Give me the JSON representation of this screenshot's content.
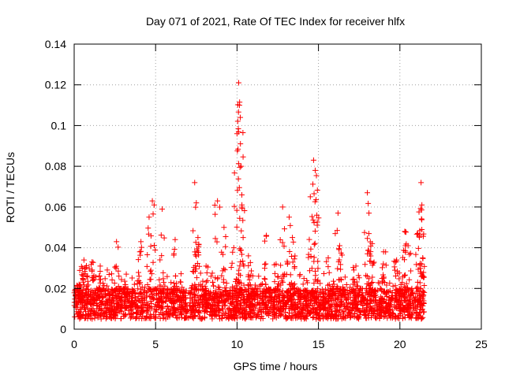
{
  "chart_data": {
    "type": "scatter",
    "title": "Day 071 of 2021, Rate Of TEC Index for receiver hlfx",
    "xlabel": "GPS time / hours",
    "ylabel": "ROTI / TECUs",
    "xlim": [
      0,
      25
    ],
    "ylim": [
      0,
      0.14
    ],
    "x_ticks": [
      0,
      5,
      10,
      15,
      20,
      25
    ],
    "x_tick_labels": [
      "0",
      "5",
      "10",
      "15",
      "20",
      "25"
    ],
    "y_ticks": [
      0,
      0.02,
      0.04,
      0.06,
      0.08,
      0.1,
      0.12,
      0.14
    ],
    "y_tick_labels": [
      "0",
      "0.02",
      "0.04",
      "0.06",
      "0.08",
      "0.1",
      "0.12",
      "0.14"
    ],
    "grid": true,
    "marker": "+",
    "color": "#ff0000",
    "data_range_hours": [
      0,
      21.5
    ],
    "baseline_band": [
      0.005,
      0.02
    ],
    "spikes": [
      {
        "x": 0.3,
        "y": 0.022
      },
      {
        "x": 0.5,
        "y": 0.03
      },
      {
        "x": 0.6,
        "y": 0.034
      },
      {
        "x": 1.1,
        "y": 0.033
      },
      {
        "x": 1.6,
        "y": 0.031
      },
      {
        "x": 2.6,
        "y": 0.043
      },
      {
        "x": 3.2,
        "y": 0.027
      },
      {
        "x": 4.1,
        "y": 0.043
      },
      {
        "x": 4.6,
        "y": 0.055
      },
      {
        "x": 4.8,
        "y": 0.063
      },
      {
        "x": 5.4,
        "y": 0.059
      },
      {
        "x": 6.2,
        "y": 0.044
      },
      {
        "x": 7.4,
        "y": 0.072
      },
      {
        "x": 7.5,
        "y": 0.062
      },
      {
        "x": 7.6,
        "y": 0.045
      },
      {
        "x": 8.1,
        "y": 0.031
      },
      {
        "x": 8.8,
        "y": 0.063
      },
      {
        "x": 9.2,
        "y": 0.05
      },
      {
        "x": 9.8,
        "y": 0.04
      },
      {
        "x": 10.0,
        "y": 0.096
      },
      {
        "x": 10.1,
        "y": 0.121
      },
      {
        "x": 10.15,
        "y": 0.11
      },
      {
        "x": 10.2,
        "y": 0.104
      },
      {
        "x": 10.25,
        "y": 0.08
      },
      {
        "x": 10.3,
        "y": 0.061
      },
      {
        "x": 10.7,
        "y": 0.036
      },
      {
        "x": 11.8,
        "y": 0.046
      },
      {
        "x": 12.4,
        "y": 0.032
      },
      {
        "x": 12.8,
        "y": 0.06
      },
      {
        "x": 13.2,
        "y": 0.055
      },
      {
        "x": 13.4,
        "y": 0.045
      },
      {
        "x": 14.5,
        "y": 0.065
      },
      {
        "x": 14.7,
        "y": 0.083
      },
      {
        "x": 14.8,
        "y": 0.078
      },
      {
        "x": 14.9,
        "y": 0.056
      },
      {
        "x": 15.6,
        "y": 0.035
      },
      {
        "x": 16.2,
        "y": 0.057
      },
      {
        "x": 16.3,
        "y": 0.041
      },
      {
        "x": 17.3,
        "y": 0.031
      },
      {
        "x": 18.0,
        "y": 0.067
      },
      {
        "x": 18.1,
        "y": 0.057
      },
      {
        "x": 18.3,
        "y": 0.042
      },
      {
        "x": 19.0,
        "y": 0.038
      },
      {
        "x": 19.8,
        "y": 0.034
      },
      {
        "x": 20.3,
        "y": 0.048
      },
      {
        "x": 20.5,
        "y": 0.041
      },
      {
        "x": 21.1,
        "y": 0.047
      },
      {
        "x": 21.3,
        "y": 0.072
      },
      {
        "x": 21.35,
        "y": 0.061
      },
      {
        "x": 21.4,
        "y": 0.035
      }
    ]
  }
}
